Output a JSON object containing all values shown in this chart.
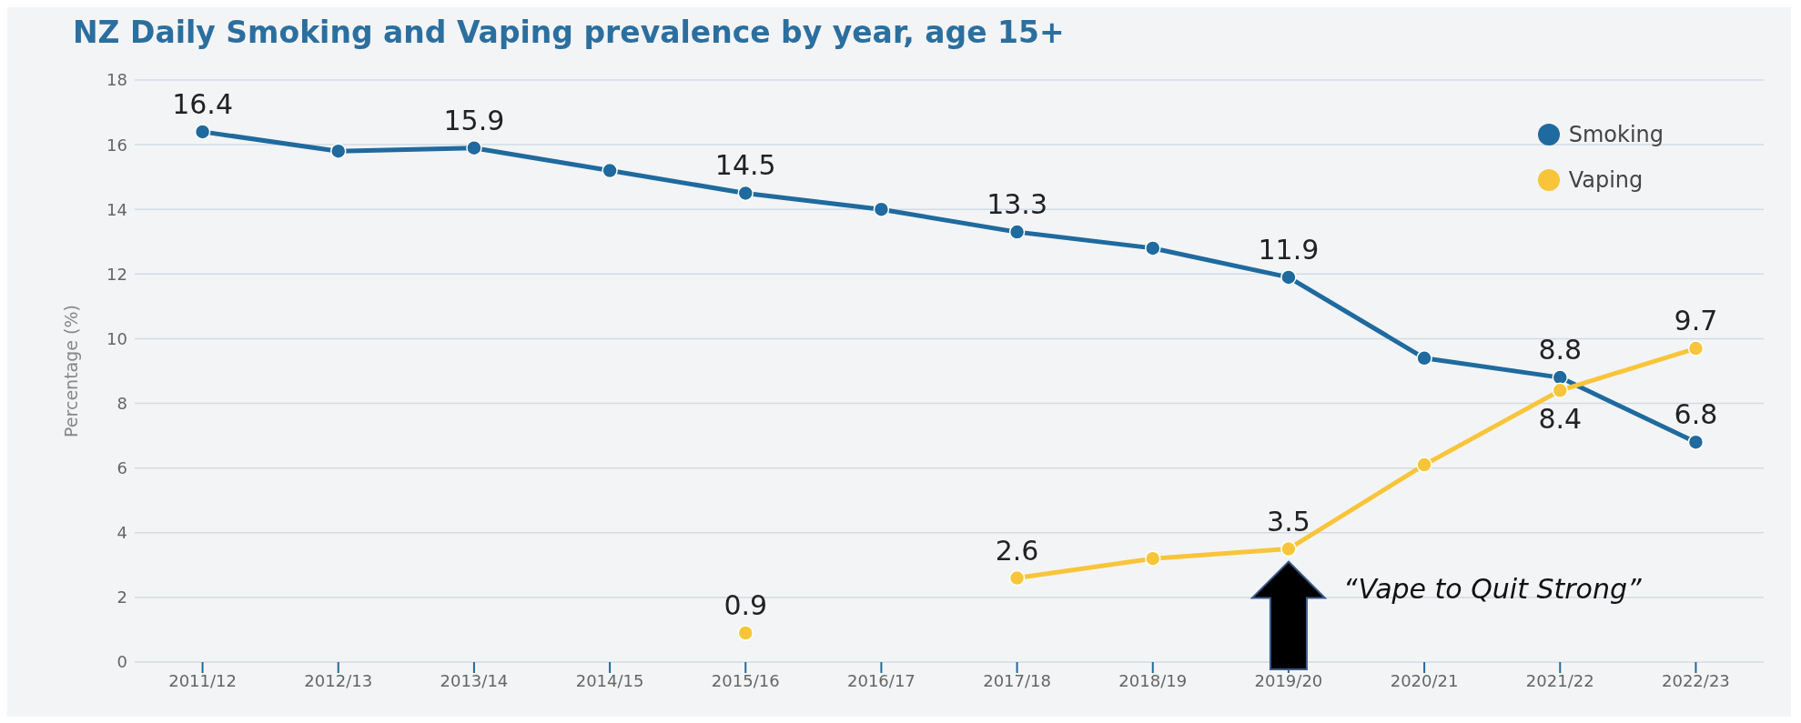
{
  "chart_data": {
    "type": "line",
    "title": "NZ Daily Smoking and Vaping prevalence by year, age 15+",
    "ylabel": "Percentage (%)",
    "categories": [
      "2011/12",
      "2012/13",
      "2013/14",
      "2014/15",
      "2015/16",
      "2016/17",
      "2017/18",
      "2018/19",
      "2019/20",
      "2020/21",
      "2021/22",
      "2022/23"
    ],
    "series": [
      {
        "name": "Smoking",
        "color": "#1f6a9e",
        "values": [
          16.4,
          15.8,
          15.9,
          15.2,
          14.5,
          14.0,
          13.3,
          12.8,
          11.9,
          9.4,
          8.8,
          6.8
        ],
        "value_labels": [
          "16.4",
          null,
          "15.9",
          null,
          "14.5",
          null,
          "13.3",
          null,
          "11.9",
          null,
          "8.8",
          "6.8"
        ]
      },
      {
        "name": "Vaping",
        "color": "#f8c53a",
        "values": [
          null,
          null,
          null,
          null,
          0.9,
          null,
          2.6,
          3.2,
          3.5,
          6.1,
          8.4,
          9.7
        ],
        "value_labels": [
          null,
          null,
          null,
          null,
          "0.9",
          null,
          "2.6",
          null,
          "3.5",
          null,
          "8.4",
          "9.7"
        ]
      }
    ],
    "ylim": [
      0,
      18
    ],
    "yticks": [
      0,
      2,
      4,
      6,
      8,
      10,
      12,
      14,
      16,
      18
    ],
    "grid": "y",
    "legend": "top right",
    "marker": "circle",
    "line_style": "solid",
    "annotations": [
      {
        "text": "“Vape to Quit Strong”",
        "x": "2019/20",
        "y": 3.5
      }
    ]
  }
}
